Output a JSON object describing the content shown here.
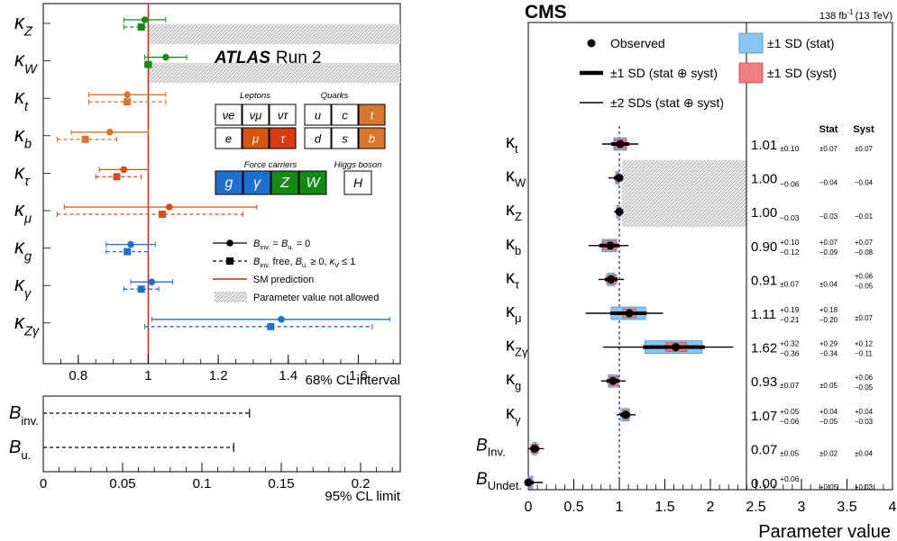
{
  "atlas": {
    "brand": "ATLAS",
    "run": "Run 2",
    "xaxis_label": "68% CL interval",
    "xlim": [
      0.7,
      1.72
    ],
    "xticks": [
      "0.8",
      "1",
      "1.2",
      "1.4",
      "1.6"
    ],
    "sm_value": 1.0,
    "legend": {
      "solid": "B_inv. = B_u. = 0",
      "dashed": "B_inv. free, B_u. ≥ 0, κ_V ≤ 1",
      "sm": "SM prediction",
      "hatch": "Parameter value not allowed"
    },
    "particles": {
      "leptons_title": "Leptons",
      "quarks_title": "Quarks",
      "force_title": "Force carriers",
      "higgs_title": "Higgs boson",
      "leptons": [
        "νe",
        "νμ",
        "ντ",
        "e",
        "μ",
        "τ"
      ],
      "quarks": [
        "u",
        "c",
        "t",
        "d",
        "s",
        "b"
      ],
      "force": [
        "g",
        "γ",
        "Z",
        "W"
      ],
      "higgs": "H"
    },
    "limits_xlabel": "95% CL limit",
    "limits_xlim": [
      0,
      0.225
    ],
    "limits_xticks": [
      "0",
      "0.05",
      "0.1",
      "0.15",
      "0.2"
    ],
    "limits": [
      {
        "label": "B",
        "sub": "inv.",
        "value": 0.13
      },
      {
        "label": "B",
        "sub": "u.",
        "value": 0.12
      }
    ],
    "colors": {
      "ew": "#138a15",
      "top": "#d9752d",
      "lep": "#de4a1f",
      "gluon": "#1f6fd1",
      "sm": "#e11a1a"
    }
  },
  "cms": {
    "brand": "CMS",
    "lumi": "138 fb",
    "lumi_sup": "-1",
    "lumi_energy": "(13 TeV)",
    "xaxis_label": "Parameter value",
    "xlim": [
      0,
      4
    ],
    "xticks": [
      "0",
      "0.5",
      "1",
      "1.5",
      "2",
      "2.5",
      "3",
      "3.5",
      "4"
    ],
    "legend": {
      "observed": "Observed",
      "sd1": "±1 SD (stat ⊕ syst)",
      "sd2": "±2 SDs (stat ⊕ syst)",
      "stat": "±1 SD (stat)",
      "syst": "±1 SD (syst)"
    },
    "col_stat": "Stat",
    "col_syst": "Syst",
    "colors": {
      "stat": "#85c6f2",
      "syst": "#ef7e83",
      "hatch": "#bdbdbd"
    }
  },
  "chart_data": [
    {
      "type": "scatter",
      "title": "ATLAS Run 2",
      "xlabel": "68% CL interval",
      "xlim": [
        0.7,
        1.72
      ],
      "parameters": [
        {
          "name": "κ_Z",
          "color": "#138a15",
          "solid": {
            "value": 0.99,
            "lo": 0.93,
            "hi": 1.05
          },
          "dashed": {
            "value": 0.98,
            "lo": 0.93,
            "hi": 1.0
          }
        },
        {
          "name": "κ_W",
          "color": "#138a15",
          "solid": {
            "value": 1.05,
            "lo": 0.99,
            "hi": 1.11
          },
          "dashed": {
            "value": 1.0,
            "lo": 0.99,
            "hi": 1.0
          }
        },
        {
          "name": "κ_t",
          "color": "#d9752d",
          "solid": {
            "value": 0.94,
            "lo": 0.83,
            "hi": 1.05
          },
          "dashed": {
            "value": 0.94,
            "lo": 0.83,
            "hi": 1.05
          }
        },
        {
          "name": "κ_b",
          "color": "#d9752d",
          "solid": {
            "value": 0.89,
            "lo": 0.78,
            "hi": 1.0
          },
          "dashed": {
            "value": 0.82,
            "lo": 0.74,
            "hi": 0.91
          }
        },
        {
          "name": "κ_τ",
          "color": "#de4a1f",
          "solid": {
            "value": 0.93,
            "lo": 0.86,
            "hi": 1.0
          },
          "dashed": {
            "value": 0.91,
            "lo": 0.85,
            "hi": 0.98
          }
        },
        {
          "name": "κ_μ",
          "color": "#de4a1f",
          "solid": {
            "value": 1.06,
            "lo": 0.76,
            "hi": 1.31
          },
          "dashed": {
            "value": 1.04,
            "lo": 0.74,
            "hi": 1.27
          }
        },
        {
          "name": "κ_g",
          "color": "#1f6fd1",
          "solid": {
            "value": 0.95,
            "lo": 0.88,
            "hi": 1.02
          },
          "dashed": {
            "value": 0.94,
            "lo": 0.88,
            "hi": 1.0
          }
        },
        {
          "name": "κ_γ",
          "color": "#1f6fd1",
          "solid": {
            "value": 1.01,
            "lo": 0.95,
            "hi": 1.07
          },
          "dashed": {
            "value": 0.98,
            "lo": 0.93,
            "hi": 1.03
          }
        },
        {
          "name": "κ_Zγ",
          "color": "#1f6fd1",
          "solid": {
            "value": 1.38,
            "lo": 1.01,
            "hi": 1.69
          },
          "dashed": {
            "value": 1.35,
            "lo": 0.99,
            "hi": 1.64
          }
        }
      ]
    },
    {
      "type": "scatter",
      "title": "CMS",
      "xlabel": "Parameter value",
      "xlim": [
        0,
        4
      ],
      "parameters": [
        {
          "name": "κ_t",
          "value": 1.01,
          "up": "+0.10",
          "dn": "−0.10",
          "stat": "±0.07",
          "syst": "±0.07",
          "sd1": [
            0.91,
            1.11
          ],
          "sd2": [
            0.81,
            1.21
          ],
          "statband": [
            0.94,
            1.08
          ],
          "systband": [
            0.94,
            1.08
          ]
        },
        {
          "name": "κ_W",
          "value": 1.0,
          "up": "",
          "dn": "−0.06",
          "stat": "−0.04",
          "syst": "−0.04",
          "sd1": [
            0.94,
            1.0
          ],
          "sd2": [
            0.88,
            1.0
          ],
          "statband": [
            0.96,
            1.0
          ],
          "systband": [
            0.96,
            1.0
          ]
        },
        {
          "name": "κ_Z",
          "value": 1.0,
          "up": "",
          "dn": "−0.03",
          "stat": "−0.03",
          "syst": "−0.01",
          "sd1": [
            0.97,
            1.0
          ],
          "sd2": [
            0.94,
            1.0
          ],
          "statband": [
            0.97,
            1.0
          ],
          "systband": [
            0.99,
            1.0
          ]
        },
        {
          "name": "κ_b",
          "value": 0.9,
          "up": "+0.10",
          "dn": "−0.12",
          "stat": "+0.07 −0.09",
          "syst": "+0.07 −0.08",
          "sd1": [
            0.78,
            1.0
          ],
          "sd2": [
            0.66,
            1.1
          ],
          "statband": [
            0.81,
            0.97
          ],
          "systband": [
            0.82,
            0.97
          ]
        },
        {
          "name": "κ_τ",
          "value": 0.91,
          "up": "+0.07",
          "dn": "−0.07",
          "stat": "±0.04",
          "syst": "+0.06 −0.05",
          "sd1": [
            0.84,
            0.98
          ],
          "sd2": [
            0.77,
            1.05
          ],
          "statband": [
            0.87,
            0.95
          ],
          "systband": [
            0.86,
            0.97
          ]
        },
        {
          "name": "κ_μ",
          "value": 1.11,
          "up": "+0.19",
          "dn": "−0.21",
          "stat": "+0.18 −0.20",
          "syst": "±0.07",
          "sd1": [
            0.9,
            1.3
          ],
          "sd2": [
            0.63,
            1.48
          ],
          "statband": [
            0.91,
            1.29
          ],
          "systband": [
            1.04,
            1.18
          ]
        },
        {
          "name": "κ_Zγ",
          "value": 1.62,
          "up": "+0.32",
          "dn": "−0.36",
          "stat": "+0.29 −0.34",
          "syst": "+0.12 −0.11",
          "sd1": [
            1.26,
            1.94
          ],
          "sd2": [
            0.82,
            2.25
          ],
          "statband": [
            1.28,
            1.91
          ],
          "systband": [
            1.51,
            1.74
          ]
        },
        {
          "name": "κ_g",
          "value": 0.93,
          "up": "+0.07",
          "dn": "−0.07",
          "stat": "±0.05",
          "syst": "+0.06 −0.05",
          "sd1": [
            0.86,
            1.0
          ],
          "sd2": [
            0.8,
            1.07
          ],
          "statband": [
            0.88,
            0.98
          ],
          "systband": [
            0.88,
            0.99
          ]
        },
        {
          "name": "κ_γ",
          "value": 1.07,
          "up": "+0.05",
          "dn": "−0.06",
          "stat": "+0.04 −0.05",
          "syst": "+0.04 −0.03",
          "sd1": [
            1.01,
            1.12
          ],
          "sd2": [
            0.97,
            1.18
          ],
          "statband": [
            1.02,
            1.11
          ],
          "systband": [
            1.04,
            1.11
          ]
        },
        {
          "name": "B_Inv.",
          "value": 0.07,
          "up": "+0.05",
          "dn": "−0.05",
          "stat": "±0.02",
          "syst": "±0.04",
          "sd1": [
            0.02,
            0.12
          ],
          "sd2": [
            0.0,
            0.17
          ],
          "statband": [
            0.05,
            0.09
          ],
          "systband": [
            0.03,
            0.11
          ]
        },
        {
          "name": "B_Undet.",
          "value": 0.0,
          "up": "+0.06",
          "dn": "",
          "stat": "+0.05",
          "syst": "+0.03",
          "sd1": [
            0.0,
            0.06
          ],
          "sd2": [
            0.0,
            0.16
          ],
          "statband": [
            0.0,
            0.05
          ],
          "systband": [
            0.0,
            0.03
          ]
        }
      ]
    }
  ]
}
